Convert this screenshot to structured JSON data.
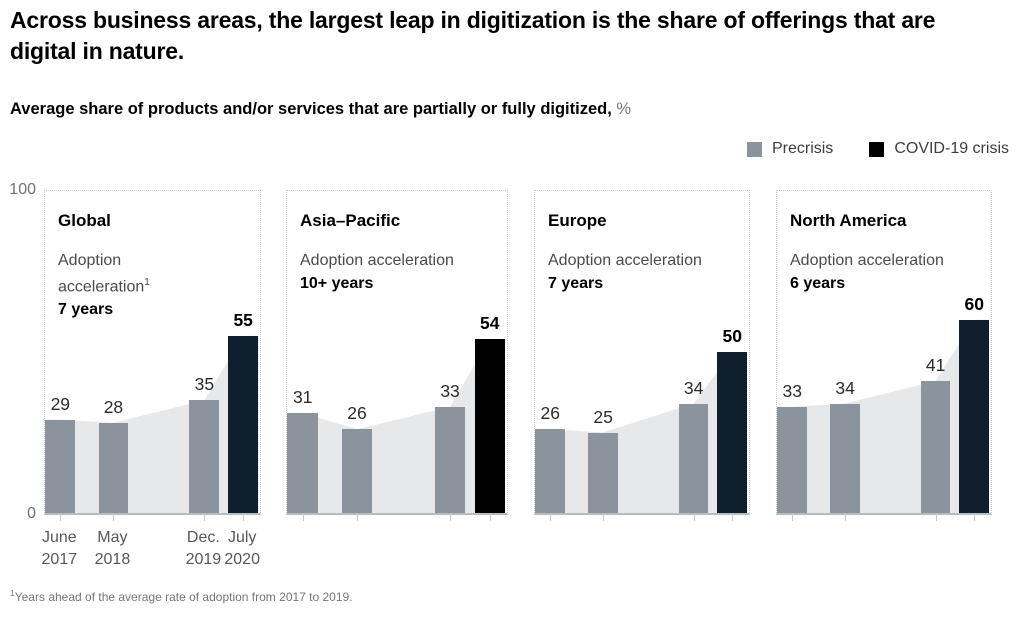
{
  "header": {
    "title": "Across business areas, the largest leap in digitization is the share of offerings that are digital in nature.",
    "subtitle": "Average share of products and/or services that are partially or fully digitized,",
    "subtitle_unit": "%"
  },
  "legend": [
    {
      "label": "Precrisis",
      "color": "#8b949d"
    },
    {
      "label": "COVID-19 crisis",
      "color": "#000000"
    }
  ],
  "footnote": {
    "superscript": "1",
    "text": "Years ahead of the average rate of adoption from 2017 to 2019."
  },
  "chart_data": {
    "type": "bar",
    "categories": [
      "June 2017",
      "May 2018",
      "Dec. 2019",
      "July 2020"
    ],
    "x_tick_lines": [
      [
        "June",
        "2017"
      ],
      [
        "May",
        "2018"
      ],
      [
        "Dec.",
        "2019"
      ],
      [
        "July",
        "2020"
      ]
    ],
    "y_axis": {
      "min": 0,
      "max": 100,
      "tick_labels": [
        "100",
        "0"
      ]
    },
    "grid": false,
    "legend_position": "top-right",
    "series_colors": {
      "precrisis": "#8b949d",
      "covid_default": "#101f2e",
      "area_fill": "#e7e8e9"
    },
    "panels": [
      {
        "title": "Global",
        "acceleration_label": "Adoption acceleration",
        "acceleration_superscript": "1",
        "acceleration_value": "7 years",
        "values": [
          29,
          28,
          35,
          55
        ],
        "covid_color": "#101f2e"
      },
      {
        "title": "Asia–Pacific",
        "acceleration_label": "Adoption acceleration",
        "acceleration_superscript": "",
        "acceleration_value": "10+ years",
        "values": [
          31,
          26,
          33,
          54
        ],
        "covid_color": "#000000"
      },
      {
        "title": "Europe",
        "acceleration_label": "Adoption acceleration",
        "acceleration_superscript": "",
        "acceleration_value": "7 years",
        "values": [
          26,
          25,
          34,
          50
        ],
        "covid_color": "#101f2e"
      },
      {
        "title": "North America",
        "acceleration_label": "Adoption acceleration",
        "acceleration_superscript": "",
        "acceleration_value": "6 years",
        "values": [
          33,
          34,
          41,
          60
        ],
        "covid_color": "#101f2e"
      }
    ]
  }
}
